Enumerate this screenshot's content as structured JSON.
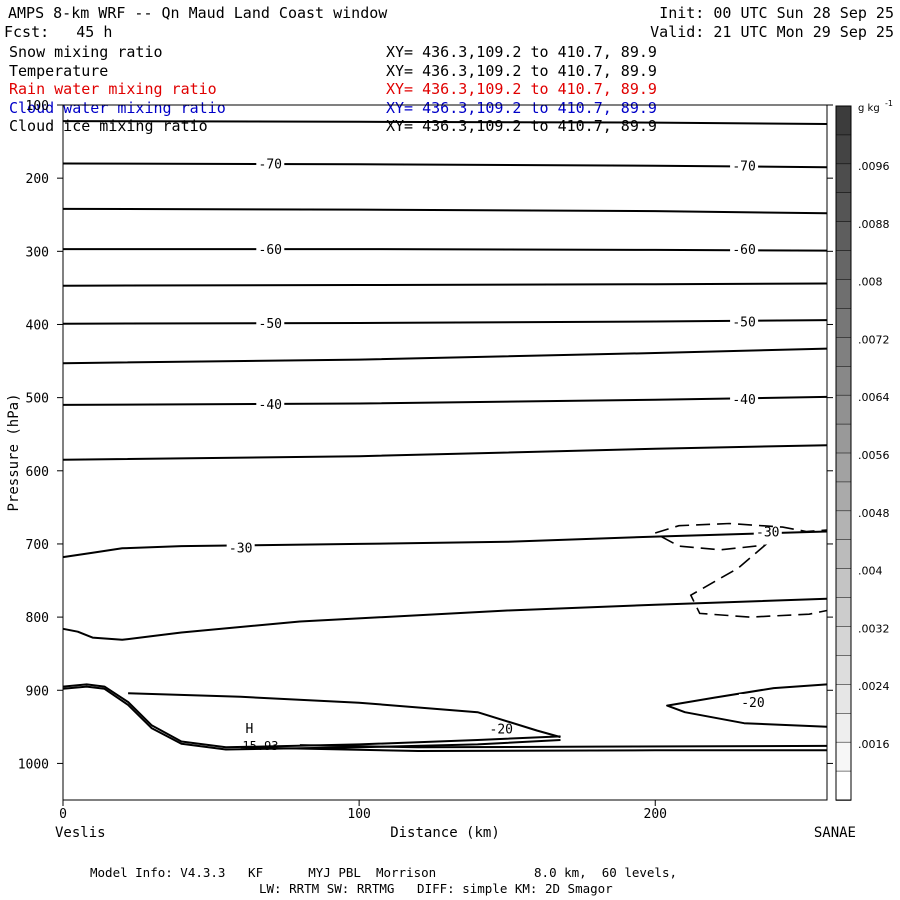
{
  "header": {
    "title": "AMPS 8-km WRF -- Qn Maud Land Coast window",
    "forecast": "Fcst:   45 h",
    "init": "Init: 00 UTC Sun 28 Sep 25",
    "valid": "Valid: 21 UTC Mon 29 Sep 25"
  },
  "fields": [
    {
      "label": "Snow mixing ratio",
      "coords": "XY= 436.3,109.2 to 410.7, 89.9",
      "color": "#000000"
    },
    {
      "label": "Temperature",
      "coords": "XY= 436.3,109.2 to 410.7, 89.9",
      "color": "#000000"
    },
    {
      "label": "Rain water mixing ratio",
      "coords": "XY= 436.3,109.2 to 410.7, 89.9",
      "color": "#e00000"
    },
    {
      "label": "Cloud water mixing ratio",
      "coords": "XY= 436.3,109.2 to 410.7, 89.9",
      "color": "#0000c8"
    },
    {
      "label": "Cloud ice mixing ratio",
      "coords": "XY= 436.3,109.2 to 410.7, 89.9",
      "color": "#000000"
    }
  ],
  "footer": {
    "line1": "Model Info: V4.3.3   KF      MYJ PBL  Morrison             8.0 km,  60 levels,",
    "line2": "LW: RRTM SW: RRTMG   DIFF: simple KM: 2D Smagor"
  },
  "chart_data": {
    "type": "contour",
    "title": "AMPS 8-km WRF -- Qn Maud Land Coast window",
    "xlabel": "Distance (km)",
    "ylabel": "Pressure (hPa)",
    "xlim": [
      0,
      258
    ],
    "ylim": [
      1050,
      100
    ],
    "x_ticks": [
      0,
      100,
      200
    ],
    "y_ticks": [
      100,
      200,
      300,
      400,
      500,
      600,
      700,
      800,
      900,
      1000
    ],
    "x_endpoints": {
      "left": "Veslis",
      "right": "SANAE"
    },
    "colorbar": {
      "unit": "g kg",
      "unit_exponent": "-1",
      "labels": [
        ".0096",
        ".0088",
        ".008",
        ".0072",
        ".0064",
        ".0056",
        ".0048",
        ".004",
        ".0032",
        ".0024",
        ".0016"
      ]
    },
    "temperature_contours": [
      {
        "line_label": "",
        "points": [
          [
            0,
            122
          ],
          [
            100,
            123
          ],
          [
            200,
            124
          ],
          [
            258,
            126
          ]
        ]
      },
      {
        "line_label": "-70",
        "label_positions": [
          [
            70,
            180
          ],
          [
            230,
            183
          ]
        ],
        "points": [
          [
            0,
            180
          ],
          [
            100,
            181
          ],
          [
            200,
            183
          ],
          [
            258,
            185
          ]
        ]
      },
      {
        "line_label": "",
        "points": [
          [
            0,
            242
          ],
          [
            100,
            243
          ],
          [
            200,
            245
          ],
          [
            258,
            248
          ]
        ]
      },
      {
        "line_label": "-60",
        "label_positions": [
          [
            70,
            297
          ],
          [
            230,
            297
          ]
        ],
        "points": [
          [
            0,
            297
          ],
          [
            100,
            297
          ],
          [
            200,
            298
          ],
          [
            258,
            299
          ]
        ]
      },
      {
        "line_label": "",
        "points": [
          [
            0,
            347
          ],
          [
            100,
            346
          ],
          [
            200,
            345
          ],
          [
            258,
            344
          ]
        ]
      },
      {
        "line_label": "-50",
        "label_positions": [
          [
            70,
            398
          ],
          [
            230,
            396
          ]
        ],
        "points": [
          [
            0,
            399
          ],
          [
            100,
            398
          ],
          [
            200,
            396
          ],
          [
            258,
            394
          ]
        ]
      },
      {
        "line_label": "",
        "points": [
          [
            0,
            453
          ],
          [
            100,
            448
          ],
          [
            200,
            439
          ],
          [
            258,
            433
          ]
        ]
      },
      {
        "line_label": "-40",
        "label_positions": [
          [
            70,
            509
          ],
          [
            230,
            502
          ]
        ],
        "points": [
          [
            0,
            510
          ],
          [
            100,
            508
          ],
          [
            200,
            503
          ],
          [
            258,
            499
          ]
        ]
      },
      {
        "line_label": "",
        "points": [
          [
            0,
            585
          ],
          [
            100,
            580
          ],
          [
            200,
            570
          ],
          [
            258,
            565
          ]
        ]
      },
      {
        "line_label": "-30",
        "label_positions": [
          [
            60,
            705
          ],
          [
            238,
            683
          ]
        ],
        "points": [
          [
            0,
            718
          ],
          [
            10,
            712
          ],
          [
            20,
            706
          ],
          [
            40,
            703
          ],
          [
            60,
            702
          ],
          [
            100,
            700
          ],
          [
            150,
            697
          ],
          [
            200,
            690
          ],
          [
            258,
            683
          ]
        ]
      },
      {
        "line_label": "",
        "points": [
          [
            0,
            816
          ],
          [
            5,
            820
          ],
          [
            10,
            828
          ],
          [
            20,
            831
          ],
          [
            40,
            821
          ],
          [
            80,
            806
          ],
          [
            150,
            791
          ],
          [
            200,
            783
          ],
          [
            258,
            775
          ]
        ]
      },
      {
        "line_label": "-20",
        "label_positions": [
          [
            148,
            952
          ]
        ],
        "points": [
          [
            0,
            895
          ],
          [
            8,
            892
          ],
          [
            14,
            895
          ],
          [
            22,
            916
          ],
          [
            30,
            948
          ],
          [
            40,
            970
          ],
          [
            55,
            978
          ],
          [
            100,
            974
          ],
          [
            140,
            968
          ],
          [
            168,
            963
          ]
        ]
      },
      {
        "line_label": "",
        "points": [
          [
            0,
            898
          ],
          [
            8,
            895
          ],
          [
            14,
            898
          ],
          [
            22,
            920
          ],
          [
            30,
            952
          ],
          [
            40,
            973
          ],
          [
            55,
            981
          ],
          [
            100,
            978
          ],
          [
            140,
            974
          ],
          [
            168,
            968
          ]
        ]
      },
      {
        "line_label": "",
        "points": [
          [
            22,
            904
          ],
          [
            60,
            909
          ],
          [
            100,
            917
          ],
          [
            140,
            930
          ],
          [
            160,
            955
          ],
          [
            168,
            964
          ]
        ]
      },
      {
        "line_label": "-20",
        "label_positions": [
          [
            233,
            916
          ]
        ],
        "points": [
          [
            258,
            892
          ],
          [
            240,
            897
          ],
          [
            220,
            910
          ],
          [
            204,
            921
          ],
          [
            210,
            930
          ],
          [
            230,
            945
          ],
          [
            258,
            950
          ]
        ]
      },
      {
        "line_label": "",
        "points": [
          [
            80,
            975
          ],
          [
            120,
            978
          ],
          [
            180,
            977
          ],
          [
            258,
            976
          ]
        ]
      },
      {
        "line_label": "",
        "points": [
          [
            60,
            978
          ],
          [
            120,
            983
          ],
          [
            200,
            982
          ],
          [
            258,
            982
          ]
        ]
      }
    ],
    "cloud_ice_dashed_contours": [
      {
        "points": [
          [
            200,
            685
          ],
          [
            208,
            675
          ],
          [
            225,
            672
          ],
          [
            243,
            677
          ],
          [
            251,
            683
          ],
          [
            258,
            681
          ]
        ]
      },
      {
        "points": [
          [
            202,
            690
          ],
          [
            208,
            703
          ],
          [
            222,
            708
          ],
          [
            234,
            703
          ],
          [
            237,
            702
          ],
          [
            228,
            733
          ],
          [
            212,
            770
          ],
          [
            215,
            795
          ],
          [
            232,
            800
          ],
          [
            252,
            796
          ],
          [
            258,
            791
          ]
        ]
      }
    ],
    "max_label": {
      "marker": "H",
      "value": "15.93",
      "x": 65,
      "p": 965
    }
  }
}
